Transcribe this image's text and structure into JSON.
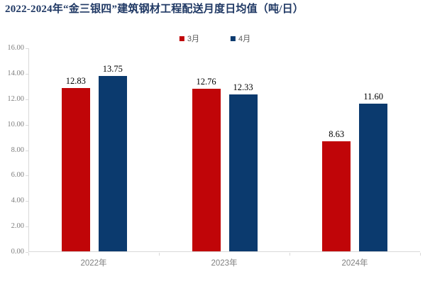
{
  "title": "2022-2024年“金三银四”建筑钢材工程配送月度日均值（吨/日）",
  "colors": {
    "title_text": "#1F3864",
    "march_red": "#C00508",
    "april_navy": "#0B3A6E",
    "axis_line": "#D9D9D9",
    "axis_text": "#808080",
    "legend_text": "#595959",
    "value_label_text": "#000000",
    "background": "#FFFFFF"
  },
  "legend": {
    "position": "top-center",
    "items": [
      {
        "label": "3月",
        "color": "#C00508"
      },
      {
        "label": "4月",
        "color": "#0B3A6E"
      }
    ]
  },
  "chart_data": {
    "type": "bar",
    "title": "2022-2024年“金三银四”建筑钢材工程配送月度日均值（吨/日）",
    "categories": [
      "2022年",
      "2023年",
      "2024年"
    ],
    "series": [
      {
        "name": "3月",
        "color": "#C00508",
        "values": [
          12.83,
          12.76,
          8.63
        ],
        "value_labels": [
          "12.83",
          "12.76",
          "8.63"
        ]
      },
      {
        "name": "4月",
        "color": "#0B3A6E",
        "values": [
          13.75,
          12.33,
          11.6
        ],
        "value_labels": [
          "13.75",
          "12.33",
          "11.60"
        ]
      }
    ],
    "xlabel": "",
    "ylabel": "",
    "ylim": [
      0,
      16
    ],
    "ytick_labels": [
      "0.00",
      "2.00",
      "4.00",
      "6.00",
      "8.00",
      "10.00",
      "12.00",
      "14.00",
      "16.00"
    ],
    "grid": false,
    "legend_position": "top-center"
  }
}
